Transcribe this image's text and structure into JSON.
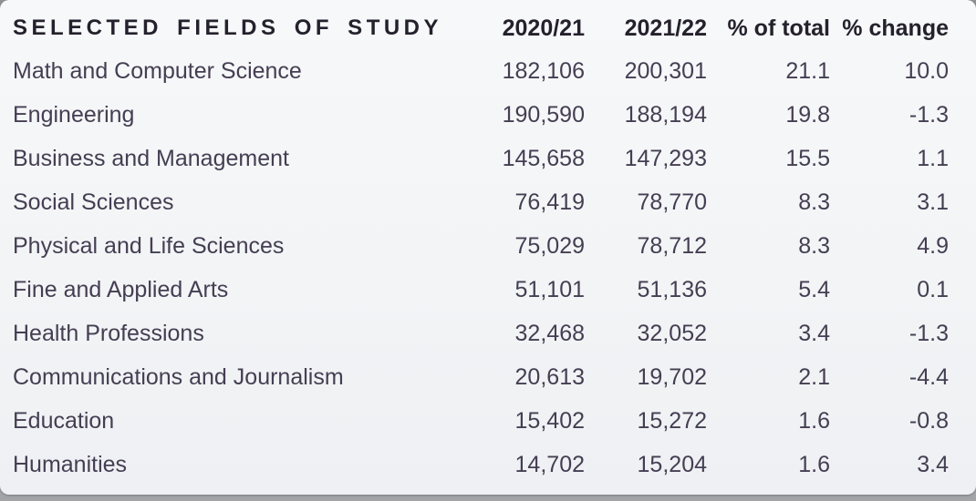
{
  "colors": {
    "card_background": "#f2f4f6",
    "backdrop_gray": "#97999c",
    "header_text": "#25212c",
    "body_text": "#453e52"
  },
  "table": {
    "title_column_header": "SELECTED FIELDS OF STUDY",
    "columns": [
      "2020/21",
      "2021/22",
      "% of total",
      "% change"
    ],
    "rows": [
      {
        "field": "Math and Computer Science",
        "y2021": "182,106",
        "y2022": "200,301",
        "pct_total": "21.1",
        "pct_change": "10.0"
      },
      {
        "field": "Engineering",
        "y2021": "190,590",
        "y2022": "188,194",
        "pct_total": "19.8",
        "pct_change": "-1.3"
      },
      {
        "field": "Business and Management",
        "y2021": "145,658",
        "y2022": "147,293",
        "pct_total": "15.5",
        "pct_change": "1.1"
      },
      {
        "field": "Social Sciences",
        "y2021": "76,419",
        "y2022": "78,770",
        "pct_total": "8.3",
        "pct_change": "3.1"
      },
      {
        "field": "Physical and Life Sciences",
        "y2021": "75,029",
        "y2022": "78,712",
        "pct_total": "8.3",
        "pct_change": "4.9"
      },
      {
        "field": "Fine and Applied Arts",
        "y2021": "51,101",
        "y2022": "51,136",
        "pct_total": "5.4",
        "pct_change": "0.1"
      },
      {
        "field": "Health Professions",
        "y2021": "32,468",
        "y2022": "32,052",
        "pct_total": "3.4",
        "pct_change": "-1.3"
      },
      {
        "field": "Communications and Journalism",
        "y2021": "20,613",
        "y2022": "19,702",
        "pct_total": "2.1",
        "pct_change": "-4.4"
      },
      {
        "field": "Education",
        "y2021": "15,402",
        "y2022": "15,272",
        "pct_total": "1.6",
        "pct_change": "-0.8"
      },
      {
        "field": "Humanities",
        "y2021": "14,702",
        "y2022": "15,204",
        "pct_total": "1.6",
        "pct_change": "3.4"
      }
    ]
  },
  "chart_data": {
    "type": "table",
    "title": "SELECTED FIELDS OF STUDY",
    "columns": [
      "SELECTED FIELDS OF STUDY",
      "2020/21",
      "2021/22",
      "% of total",
      "% change"
    ],
    "rows": [
      [
        "Math and Computer Science",
        182106,
        200301,
        21.1,
        10.0
      ],
      [
        "Engineering",
        190590,
        188194,
        19.8,
        -1.3
      ],
      [
        "Business and Management",
        145658,
        147293,
        15.5,
        1.1
      ],
      [
        "Social Sciences",
        76419,
        78770,
        8.3,
        3.1
      ],
      [
        "Physical and Life Sciences",
        75029,
        78712,
        8.3,
        4.9
      ],
      [
        "Fine and Applied Arts",
        51101,
        51136,
        5.4,
        0.1
      ],
      [
        "Health Professions",
        32468,
        32052,
        3.4,
        -1.3
      ],
      [
        "Communications and Journalism",
        20613,
        19702,
        2.1,
        -4.4
      ],
      [
        "Education",
        15402,
        15272,
        1.6,
        -0.8
      ],
      [
        "Humanities",
        14702,
        15204,
        1.6,
        3.4
      ]
    ]
  }
}
